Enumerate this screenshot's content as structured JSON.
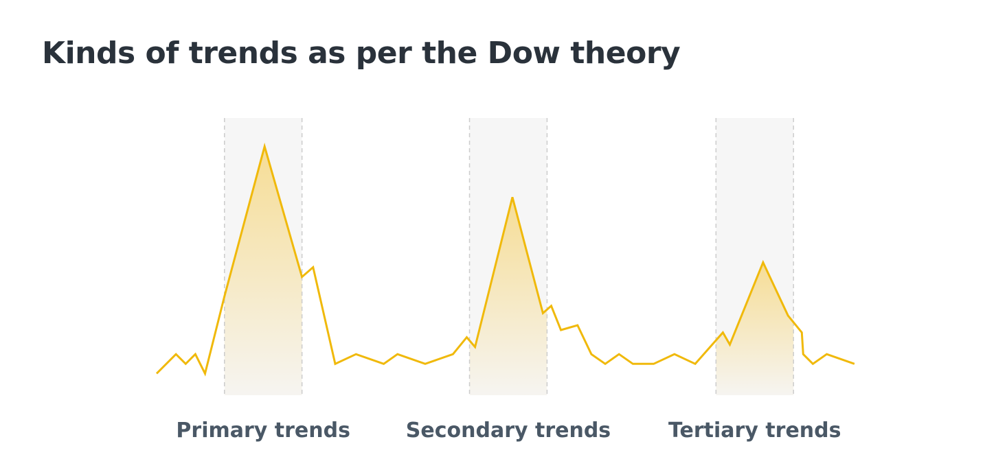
{
  "title": "Kinds of trends as per the Dow theory",
  "colors": {
    "line": "#f0b90b",
    "fill_top": "#f5c846",
    "band": "#f6f6f6",
    "guide": "#cccccc",
    "title": "#2a323b",
    "label": "#4a5866"
  },
  "chart_data": {
    "type": "line",
    "title": "Kinds of trends as per the Dow theory",
    "xlabel": "",
    "ylabel": "",
    "grid": false,
    "xlim": [
      0,
      51
    ],
    "ylim": [
      0,
      100
    ],
    "series": [
      {
        "values": [
          5,
          13,
          9,
          13,
          5,
          37,
          99,
          45,
          49,
          9,
          13,
          9,
          13,
          9,
          13,
          20,
          16,
          78,
          30,
          33,
          23,
          25,
          13,
          9,
          13,
          9,
          9,
          13,
          9,
          22,
          17,
          51,
          29,
          22,
          13,
          9,
          13,
          9
        ],
        "x": [
          0,
          1.4,
          2.1,
          2.8,
          3.5,
          4.9,
          7.8,
          10.5,
          11.3,
          12.9,
          14.4,
          16.4,
          17.4,
          19.4,
          21.4,
          22.4,
          23,
          25.7,
          27.9,
          28.5,
          29.2,
          30.4,
          31.4,
          32.4,
          33.4,
          34.4,
          35.9,
          37.4,
          38.9,
          40.9,
          41.4,
          43.8,
          45.6,
          46.6,
          46.7,
          47.4,
          48.4,
          50.4
        ]
      }
    ],
    "highlights": [
      {
        "label": "Primary trends",
        "x_range": [
          4.9,
          10.5
        ]
      },
      {
        "label": "Secondary trends",
        "x_range": [
          22.6,
          28.2
        ]
      },
      {
        "label": "Tertiary trends",
        "x_range": [
          40.4,
          46.0
        ]
      }
    ]
  }
}
